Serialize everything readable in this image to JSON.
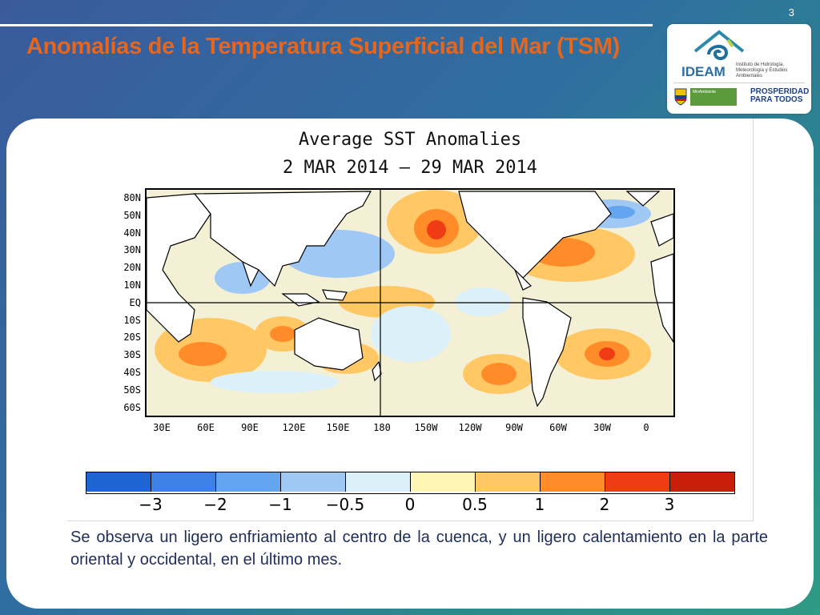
{
  "slide": {
    "number": "3",
    "title": "Anomalías de la Temperatura Superficial del Mar (TSM)",
    "body_text": "Se observa un ligero enfriamiento al centro de la cuenca, y un ligero calentamiento en la parte oriental y occidental, en el último mes."
  },
  "logo": {
    "name": "IDEAM",
    "subtitle": "Instituto de Hidrología, Meteorología y Estudios Ambientales",
    "ministry": "MinAmbiente",
    "slogan": "PROSPERIDAD PARA TODOS"
  },
  "map": {
    "title_line1": "Average SST Anomalies",
    "title_line2": "2 MAR 2014 – 29 MAR 2014",
    "lat_labels": [
      "80N",
      "50N",
      "40N",
      "30N",
      "20N",
      "10N",
      "EQ",
      "10S",
      "20S",
      "30S",
      "40S",
      "50S",
      "60S"
    ],
    "lon_labels": [
      "30E",
      "60E",
      "90E",
      "120E",
      "150E",
      "180",
      "150W",
      "120W",
      "90W",
      "60W",
      "30W",
      "0"
    ],
    "colorbar_labels": [
      "−3",
      "−2",
      "−1",
      "−0.5",
      "0",
      "0.5",
      "1",
      "2",
      "3"
    ],
    "colorbar_colors": [
      "#1e64d2",
      "#3c82e6",
      "#64a5f0",
      "#a0c8f5",
      "#dcf0fa",
      "#fff5b4",
      "#ffc864",
      "#ff8c28",
      "#f03c14",
      "#c81e0a"
    ]
  }
}
